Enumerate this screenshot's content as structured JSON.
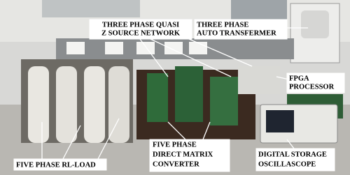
{
  "labels": [
    {
      "lines": [
        "THREE PHASE QUASI",
        "Z SOURCE NETWORK"
      ]
    },
    {
      "lines": [
        "THREE PHASE",
        "AUTO TRANSFERMER"
      ]
    },
    {
      "lines": [
        "FPGA",
        "PROCESSOR"
      ]
    },
    {
      "lines": [
        "FIVE PHASE RL-LOAD"
      ]
    },
    {
      "lines": [
        "FIVE PHASE",
        "DIRECT MATRIX",
        "CONVERTER"
      ]
    },
    {
      "lines": [
        "DIGITAL STORAGE",
        "OSCILLASCOPE"
      ]
    }
  ]
}
